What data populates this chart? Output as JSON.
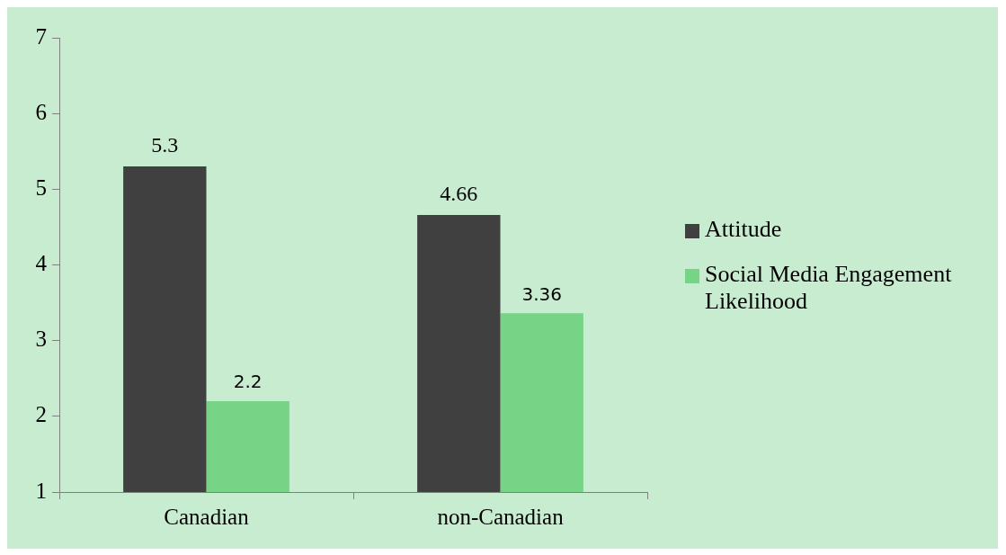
{
  "chart_data": {
    "type": "bar",
    "categories": [
      "Canadian",
      "non-Canadian"
    ],
    "series": [
      {
        "name": "Attitude",
        "color": "#404040",
        "values": [
          5.3,
          4.66
        ]
      },
      {
        "name": "Social Media Engagement Likelihood",
        "color": "#77d385",
        "values": [
          2.2,
          3.36
        ]
      }
    ],
    "ylim": [
      1,
      7
    ],
    "yticks": [
      1,
      2,
      3,
      4,
      5,
      6,
      7
    ],
    "grid": false,
    "legend": "right",
    "data_labels": true
  }
}
